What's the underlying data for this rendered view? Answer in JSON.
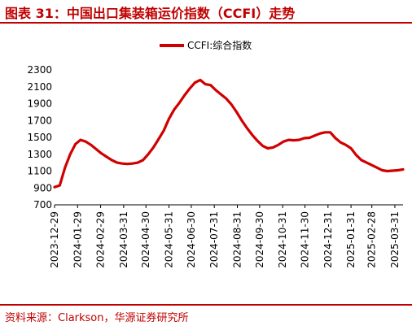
{
  "figure": {
    "title": "图表 31：中国出口集装箱运价指数（CCFI）走势",
    "source": "资料来源：Clarkson，华源证券研究所"
  },
  "colors": {
    "accent": "#c00000",
    "line": "#d10000"
  },
  "chart_data": {
    "type": "line",
    "title": "",
    "xlabel": "",
    "ylabel": "",
    "ylim": [
      700,
      2300
    ],
    "yticks": [
      700,
      900,
      1100,
      1300,
      1500,
      1700,
      1900,
      2100,
      2300
    ],
    "grid": false,
    "legend_position": "top-center",
    "x_tick_labels": [
      "2023-12-29",
      "2024-01-29",
      "2024-02-29",
      "2024-03-31",
      "2024-04-30",
      "2024-05-31",
      "2024-06-30",
      "2024-07-31",
      "2024-08-31",
      "2024-09-30",
      "2024-10-31",
      "2024-11-30",
      "2024-12-31",
      "2025-01-31",
      "2025-02-28",
      "2025-03-31"
    ],
    "series": [
      {
        "name": "CCFI:综合指数",
        "x": [
          "2023-12-29",
          "2024-01-05",
          "2024-01-12",
          "2024-01-19",
          "2024-01-26",
          "2024-02-02",
          "2024-02-09",
          "2024-02-16",
          "2024-02-23",
          "2024-03-01",
          "2024-03-08",
          "2024-03-15",
          "2024-03-22",
          "2024-03-29",
          "2024-04-05",
          "2024-04-12",
          "2024-04-19",
          "2024-04-26",
          "2024-05-03",
          "2024-05-10",
          "2024-05-17",
          "2024-05-24",
          "2024-05-31",
          "2024-06-07",
          "2024-06-14",
          "2024-06-21",
          "2024-06-28",
          "2024-07-05",
          "2024-07-12",
          "2024-07-19",
          "2024-07-26",
          "2024-08-02",
          "2024-08-09",
          "2024-08-16",
          "2024-08-23",
          "2024-08-30",
          "2024-09-06",
          "2024-09-13",
          "2024-09-20",
          "2024-09-27",
          "2024-10-04",
          "2024-10-11",
          "2024-10-18",
          "2024-10-25",
          "2024-11-01",
          "2024-11-08",
          "2024-11-15",
          "2024-11-22",
          "2024-11-29",
          "2024-12-06",
          "2024-12-13",
          "2024-12-20",
          "2024-12-27",
          "2025-01-03",
          "2025-01-10",
          "2025-01-17",
          "2025-01-24",
          "2025-01-31",
          "2025-02-07",
          "2025-02-14",
          "2025-02-21",
          "2025-02-28",
          "2025-03-07",
          "2025-03-14",
          "2025-03-21",
          "2025-03-28",
          "2025-04-04",
          "2025-04-11"
        ],
        "values": [
          910,
          930,
          1140,
          1300,
          1420,
          1470,
          1450,
          1410,
          1360,
          1310,
          1270,
          1230,
          1200,
          1190,
          1185,
          1190,
          1200,
          1230,
          1300,
          1380,
          1480,
          1580,
          1720,
          1830,
          1910,
          2000,
          2080,
          2150,
          2180,
          2130,
          2120,
          2060,
          2010,
          1960,
          1890,
          1800,
          1700,
          1610,
          1530,
          1460,
          1400,
          1370,
          1380,
          1410,
          1450,
          1470,
          1465,
          1470,
          1490,
          1495,
          1520,
          1545,
          1560,
          1560,
          1490,
          1440,
          1410,
          1370,
          1290,
          1230,
          1200,
          1170,
          1140,
          1110,
          1100,
          1105,
          1110,
          1120
        ]
      }
    ]
  }
}
